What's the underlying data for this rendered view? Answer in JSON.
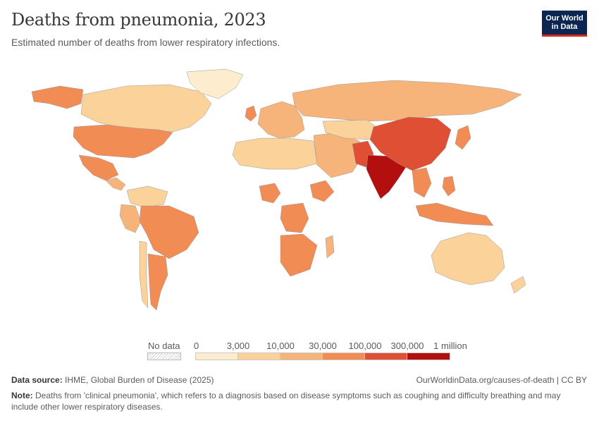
{
  "header": {
    "title": "Deaths from pneumonia, 2023",
    "subtitle": "Estimated number of deaths from lower respiratory infections.",
    "logo_line1": "Our World",
    "logo_line2": "in Data"
  },
  "legend": {
    "no_data_label": "No data",
    "ticks": [
      "0",
      "3,000",
      "10,000",
      "30,000",
      "100,000",
      "300,000",
      "1 million"
    ],
    "colors": [
      "#fdeccd",
      "#fbd29a",
      "#f7b47a",
      "#f18c55",
      "#de4f33",
      "#b40f0f"
    ]
  },
  "footer": {
    "source_label": "Data source:",
    "source_text": "IHME, Global Burden of Disease (2025)",
    "url": "OurWorldinData.org/causes-of-death | CC BY",
    "note_label": "Note:",
    "note_text": "Deaths from 'clinical pneumonia', which refers to a diagnosis based on disease symptoms such as coughing and difficulty breathing and may include other lower respiratory diseases."
  },
  "map_data": {
    "regions": [
      {
        "name": "Canada",
        "bin": 1
      },
      {
        "name": "Alaska",
        "bin": 3
      },
      {
        "name": "Greenland",
        "bin": 0
      },
      {
        "name": "United States",
        "bin": 3
      },
      {
        "name": "Mexico",
        "bin": 3
      },
      {
        "name": "Central America",
        "bin": 2
      },
      {
        "name": "Colombia/Venezuela",
        "bin": 1
      },
      {
        "name": "Peru/Ecuador",
        "bin": 2
      },
      {
        "name": "Brazil",
        "bin": 3
      },
      {
        "name": "Argentina",
        "bin": 3
      },
      {
        "name": "Chile",
        "bin": 1
      },
      {
        "name": "Russia",
        "bin": 2
      },
      {
        "name": "Europe",
        "bin": 2
      },
      {
        "name": "United Kingdom",
        "bin": 3
      },
      {
        "name": "North Africa",
        "bin": 1
      },
      {
        "name": "Nigeria",
        "bin": 3
      },
      {
        "name": "Ethiopia",
        "bin": 3
      },
      {
        "name": "DR Congo",
        "bin": 3
      },
      {
        "name": "Southern Africa",
        "bin": 3
      },
      {
        "name": "Middle East",
        "bin": 2
      },
      {
        "name": "Central Asia",
        "bin": 1
      },
      {
        "name": "Pakistan",
        "bin": 4
      },
      {
        "name": "India",
        "bin": 5
      },
      {
        "name": "China",
        "bin": 4
      },
      {
        "name": "Japan",
        "bin": 3
      },
      {
        "name": "Southeast Asia",
        "bin": 3
      },
      {
        "name": "Indonesia",
        "bin": 3
      },
      {
        "name": "Philippines",
        "bin": 3
      },
      {
        "name": "Australia",
        "bin": 1
      },
      {
        "name": "New Zealand",
        "bin": 1
      },
      {
        "name": "Madagascar",
        "bin": 2
      }
    ]
  }
}
